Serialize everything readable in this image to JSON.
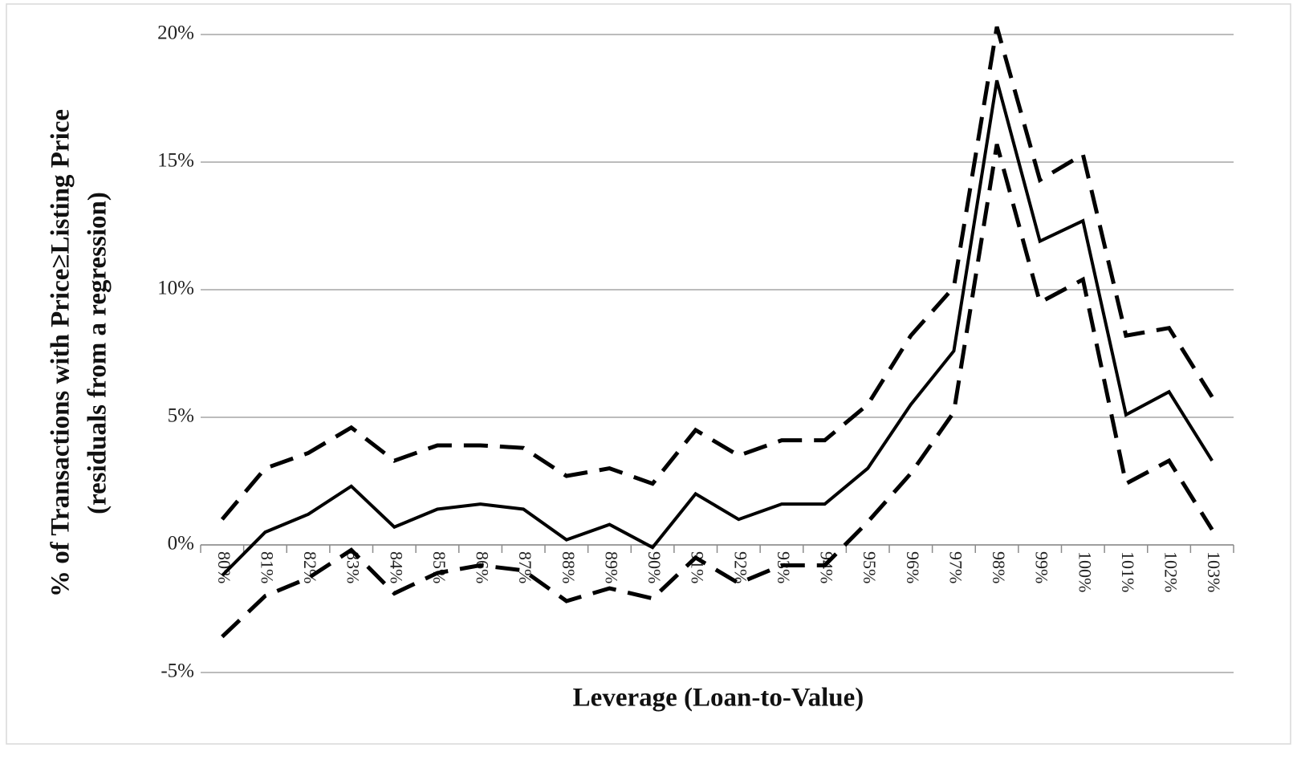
{
  "chart_data": {
    "type": "line",
    "x_label": "Leverage (Loan-to-Value)",
    "y_label": [
      "% of Transactions with Price≥Listing Price",
      "(residuals from a regression)"
    ],
    "categories": [
      "80%",
      "81%",
      "82%",
      "83%",
      "84%",
      "85%",
      "86%",
      "87%",
      "88%",
      "89%",
      "90%",
      "91%",
      "92%",
      "93%",
      "94%",
      "95%",
      "96%",
      "97%",
      "98%",
      "99%",
      "100%",
      "101%",
      "102%",
      "103%"
    ],
    "series": [
      {
        "color": "#000000",
        "style": "solid",
        "values": [
          -1.2,
          0.5,
          1.2,
          2.3,
          0.7,
          1.4,
          1.6,
          1.4,
          0.2,
          0.8,
          -0.1,
          2.0,
          1.0,
          1.6,
          1.6,
          3.0,
          5.5,
          7.6,
          18.2,
          11.9,
          12.7,
          5.1,
          6.0,
          3.3
        ]
      },
      {
        "color": "#000000",
        "style": "dashed",
        "values": [
          1.0,
          3.0,
          3.6,
          4.6,
          3.3,
          3.9,
          3.9,
          3.8,
          2.7,
          3.0,
          2.4,
          4.5,
          3.5,
          4.1,
          4.1,
          5.5,
          8.2,
          10.1,
          20.3,
          14.3,
          15.3,
          8.2,
          8.5,
          5.8
        ]
      },
      {
        "color": "#000000",
        "style": "dashed",
        "values": [
          -3.6,
          -2.0,
          -1.3,
          -0.2,
          -1.9,
          -1.1,
          -0.8,
          -1.0,
          -2.2,
          -1.7,
          -2.1,
          -0.5,
          -1.5,
          -0.8,
          -0.8,
          0.9,
          2.8,
          5.2,
          15.7,
          9.5,
          10.4,
          2.4,
          3.3,
          0.6
        ]
      }
    ],
    "ylim": [
      -5,
      20
    ],
    "yticks": [
      {
        "value": -5,
        "label": "-5%"
      },
      {
        "value": 0,
        "label": "0%"
      },
      {
        "value": 5,
        "label": "5%"
      },
      {
        "value": 10,
        "label": "10%"
      },
      {
        "value": 15,
        "label": "15%"
      },
      {
        "value": 20,
        "label": "20%"
      }
    ],
    "grid": true
  }
}
